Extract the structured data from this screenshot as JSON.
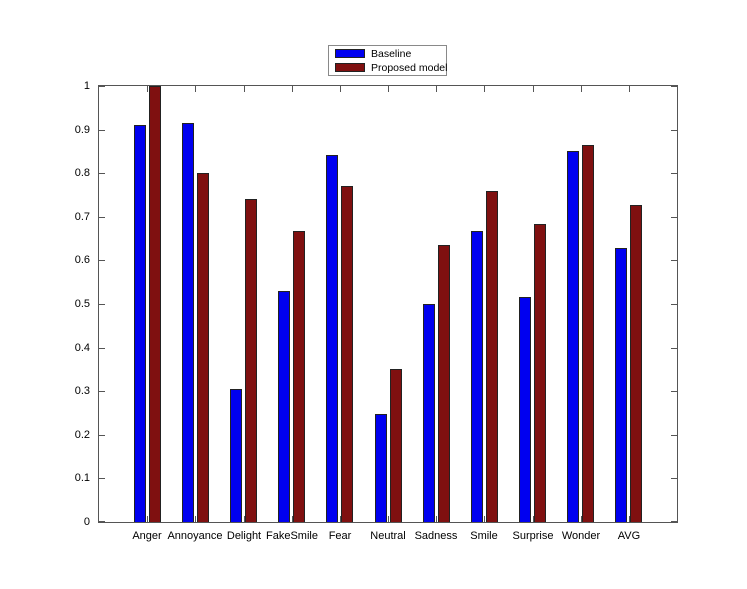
{
  "chart_data": {
    "type": "bar",
    "title": "",
    "xlabel": "",
    "ylabel": "",
    "categories": [
      "Anger",
      "Annoyance",
      "Delight",
      "FakeSmile",
      "Fear",
      "Neutral",
      "Sadness",
      "Smile",
      "Surprise",
      "Wonder",
      "AVG"
    ],
    "series": [
      {
        "name": "Baseline",
        "color": "#0000f0",
        "values": [
          0.91,
          0.916,
          0.305,
          0.529,
          0.841,
          0.248,
          0.5,
          0.667,
          0.516,
          0.85,
          0.628
        ]
      },
      {
        "name": "Proposed model",
        "color": "#7f1010",
        "values": [
          1.0,
          0.8,
          0.741,
          0.667,
          0.771,
          0.351,
          0.635,
          0.76,
          0.684,
          0.864,
          0.727
        ]
      }
    ],
    "ylim": [
      0,
      1
    ],
    "ytick_step": 0.1,
    "ytick_labels": [
      "0",
      "0.1",
      "0.2",
      "0.3",
      "0.4",
      "0.5",
      "0.6",
      "0.7",
      "0.8",
      "0.9",
      "1"
    ],
    "grid": false,
    "legend": {
      "position": "top-center-outside",
      "entries": [
        "Baseline",
        "Proposed model"
      ]
    }
  },
  "colors": {
    "background": "#ffffff",
    "axis": "#555555",
    "bar_edge": "#222222",
    "legend_border": "#898989",
    "text": "#000000"
  }
}
